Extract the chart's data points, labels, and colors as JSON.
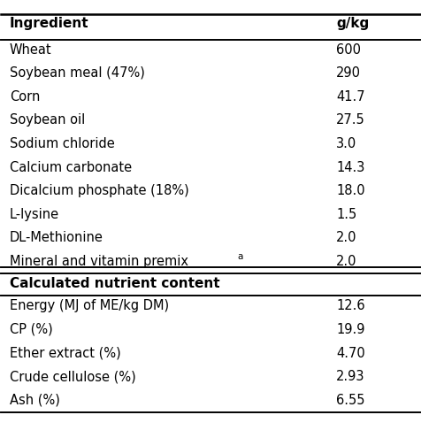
{
  "col_headers": [
    "Ingredient",
    "g/kg"
  ],
  "ingredients": [
    [
      "Wheat",
      "600"
    ],
    [
      "Soybean meal (47%)",
      "290"
    ],
    [
      "Corn",
      "41.7"
    ],
    [
      "Soybean oil",
      "27.5"
    ],
    [
      "Sodium chloride",
      "3.0"
    ],
    [
      "Calcium carbonate",
      "14.3"
    ],
    [
      "Dicalcium phosphate (18%)",
      "18.0"
    ],
    [
      "L-lysine",
      "1.5"
    ],
    [
      "DL-Methionine",
      "2.0"
    ],
    [
      "Mineral and vitamin premix",
      "2.0"
    ]
  ],
  "mineral_superscript": "a",
  "section_header": "Calculated nutrient content",
  "nutrients": [
    [
      "Energy (MJ of ME/kg DM)",
      "12.6"
    ],
    [
      "CP (%)",
      "19.9"
    ],
    [
      "Ether extract (%)",
      "4.70"
    ],
    [
      "Crude cellulose (%)",
      "2.93"
    ],
    [
      "Ash (%)",
      "6.55"
    ]
  ],
  "bg_color": "#ffffff",
  "text_color": "#000000",
  "header_fontsize": 11,
  "row_fontsize": 10.5,
  "section_fontsize": 11
}
